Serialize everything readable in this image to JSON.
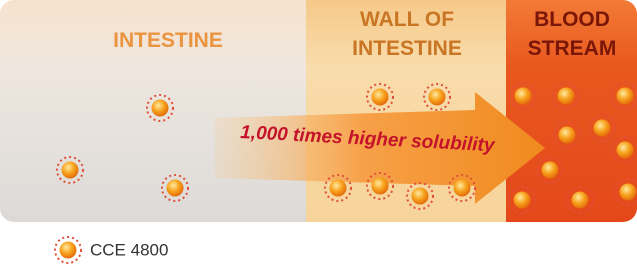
{
  "sections": [
    {
      "label_lines": [
        "INTESTINE"
      ]
    },
    {
      "label_lines": [
        "WALL OF",
        "INTESTINE"
      ]
    },
    {
      "label_lines": [
        "BLOOD",
        "STREAM"
      ]
    }
  ],
  "arrow": {
    "label": "1,000 times higher solubility"
  },
  "legend": {
    "label": "CCE 4800"
  }
}
